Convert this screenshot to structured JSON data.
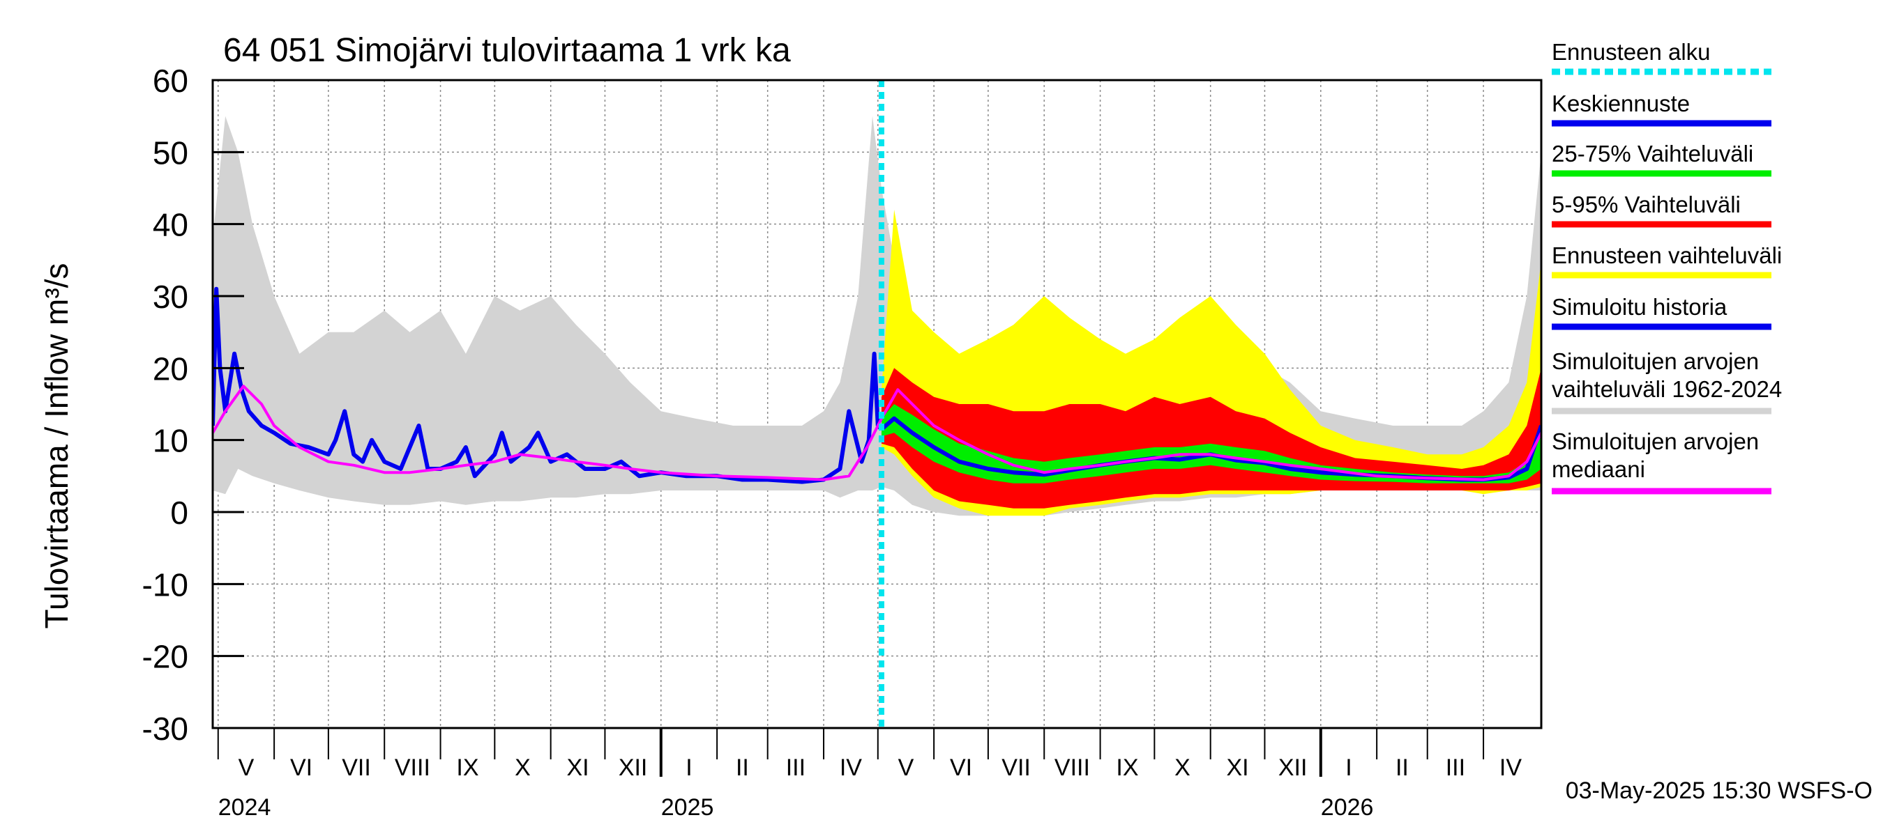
{
  "chart_data": {
    "type": "area",
    "title": "64 051 Simojärvi tulovirtaama 1 vrk ka",
    "ylabel": "Tulovirtaama / Inflow    m³/s",
    "ylim": [
      -30,
      60
    ],
    "yticks": [
      -30,
      -20,
      -10,
      0,
      10,
      20,
      30,
      40,
      50,
      60
    ],
    "ytick_labels": [
      "-30",
      "-20",
      "-10",
      "0",
      "10",
      "20",
      "30",
      "40",
      "50",
      "60"
    ],
    "grid": true,
    "legend_position": "right",
    "months": [
      {
        "label": "V",
        "start": "2024-05-01",
        "end": "2024-06-01"
      },
      {
        "label": "VI",
        "start": "2024-06-01",
        "end": "2024-07-01"
      },
      {
        "label": "VII",
        "start": "2024-07-01",
        "end": "2024-08-01"
      },
      {
        "label": "VIII",
        "start": "2024-08-01",
        "end": "2024-09-01"
      },
      {
        "label": "IX",
        "start": "2024-09-01",
        "end": "2024-10-01"
      },
      {
        "label": "X",
        "start": "2024-10-01",
        "end": "2024-11-01"
      },
      {
        "label": "XI",
        "start": "2024-11-01",
        "end": "2024-12-01"
      },
      {
        "label": "XII",
        "start": "2024-12-01",
        "end": "2025-01-01"
      },
      {
        "label": "I",
        "start": "2025-01-01",
        "end": "2025-02-01"
      },
      {
        "label": "II",
        "start": "2025-02-01",
        "end": "2025-03-01"
      },
      {
        "label": "III",
        "start": "2025-03-01",
        "end": "2025-04-01"
      },
      {
        "label": "IV",
        "start": "2025-04-01",
        "end": "2025-05-01"
      },
      {
        "label": "V",
        "start": "2025-05-01",
        "end": "2025-06-01"
      },
      {
        "label": "VI",
        "start": "2025-06-01",
        "end": "2025-07-01"
      },
      {
        "label": "VII",
        "start": "2025-07-01",
        "end": "2025-08-01"
      },
      {
        "label": "VIII",
        "start": "2025-08-01",
        "end": "2025-09-01"
      },
      {
        "label": "IX",
        "start": "2025-09-01",
        "end": "2025-10-01"
      },
      {
        "label": "X",
        "start": "2025-10-01",
        "end": "2025-11-01"
      },
      {
        "label": "XI",
        "start": "2025-11-01",
        "end": "2025-12-01"
      },
      {
        "label": "XII",
        "start": "2025-12-01",
        "end": "2026-01-01"
      },
      {
        "label": "I",
        "start": "2026-01-01",
        "end": "2026-02-01"
      },
      {
        "label": "II",
        "start": "2026-02-01",
        "end": "2026-03-01"
      },
      {
        "label": "III",
        "start": "2026-03-01",
        "end": "2026-04-01"
      },
      {
        "label": "IV",
        "start": "2026-04-01",
        "end": "2026-05-01"
      }
    ],
    "x_start": "2024-04-28",
    "x_end": "2026-05-03",
    "years": [
      {
        "label": "2024",
        "at": "2024-05-01"
      },
      {
        "label": "2025",
        "at": "2025-01-01"
      },
      {
        "label": "2026",
        "at": "2026-01-01"
      }
    ],
    "forecast_start": "2025-05-03",
    "legend": [
      {
        "label": "Ennusteen alku",
        "color": "#00e5ee",
        "dashed": true
      },
      {
        "label": "Keskiennuste",
        "color": "#0000ee"
      },
      {
        "label": "25-75% Vaihteluväli",
        "color": "#00ee00"
      },
      {
        "label": "5-95% Vaihteluväli",
        "color": "#ff0000"
      },
      {
        "label": "Ennusteen vaihteluväli",
        "color": "#ffff00"
      },
      {
        "label": "Simuloitu historia",
        "color": "#0000ee"
      },
      {
        "label": "Simuloitujen arvojen vaihteluväli 1962-2024",
        "label_lines": [
          "Simuloitujen arvojen",
          "vaihteluväli 1962-2024"
        ],
        "color": "#d3d3d3"
      },
      {
        "label": "Simuloitujen arvojen mediaani",
        "label_lines": [
          "Simuloitujen arvojen",
          "mediaani"
        ],
        "color": "#ff00ff"
      }
    ],
    "series": [
      {
        "name": "Simuloitujen arvojen vaihteluväli 1962-2024",
        "kind": "band",
        "color": "#d3d3d3",
        "x": [
          "2024-04-28",
          "2024-05-05",
          "2024-05-12",
          "2024-05-20",
          "2024-06-01",
          "2024-06-15",
          "2024-07-01",
          "2024-07-15",
          "2024-08-01",
          "2024-08-15",
          "2024-09-01",
          "2024-09-15",
          "2024-10-01",
          "2024-10-15",
          "2024-11-01",
          "2024-11-15",
          "2024-12-01",
          "2024-12-15",
          "2025-01-01",
          "2025-01-20",
          "2025-02-10",
          "2025-03-01",
          "2025-03-20",
          "2025-04-01",
          "2025-04-10",
          "2025-04-20",
          "2025-04-28",
          "2025-05-03",
          "2025-05-10",
          "2025-05-20",
          "2025-06-01",
          "2025-06-15",
          "2025-07-01",
          "2025-07-15",
          "2025-08-01",
          "2025-08-15",
          "2025-09-01",
          "2025-09-15",
          "2025-10-01",
          "2025-10-15",
          "2025-11-01",
          "2025-11-15",
          "2025-12-01",
          "2025-12-15",
          "2026-01-01",
          "2026-01-20",
          "2026-02-10",
          "2026-03-01",
          "2026-03-20",
          "2026-04-01",
          "2026-04-15",
          "2026-04-25",
          "2026-05-03"
        ],
        "lower": [
          3,
          2.5,
          6,
          5,
          4,
          3,
          2,
          1.5,
          1,
          1,
          1.5,
          1,
          1.5,
          1.5,
          2,
          2,
          2.5,
          2.5,
          3,
          3,
          3,
          3,
          3,
          3,
          2,
          3,
          3,
          3.5,
          3,
          1,
          0,
          -0.5,
          -0.5,
          0,
          -0.5,
          0,
          0.5,
          1,
          1.5,
          1.5,
          2,
          2,
          2.5,
          2.5,
          3,
          3,
          3,
          3,
          3,
          3,
          3,
          3,
          3
        ],
        "upper": [
          38,
          55,
          50,
          40,
          30,
          22,
          25,
          25,
          28,
          25,
          28,
          22,
          30,
          28,
          30,
          26,
          22,
          18,
          14,
          13,
          12,
          12,
          12,
          14,
          18,
          30,
          55,
          45,
          35,
          28,
          22,
          20,
          20,
          22,
          20,
          22,
          20,
          22,
          22,
          25,
          25,
          22,
          20,
          18,
          14,
          13,
          12,
          12,
          12,
          14,
          18,
          30,
          50
        ]
      },
      {
        "name": "Ennusteen vaihteluväli",
        "kind": "band",
        "color": "#ffff00",
        "x": [
          "2025-05-03",
          "2025-05-10",
          "2025-05-20",
          "2025-06-01",
          "2025-06-15",
          "2025-07-01",
          "2025-07-15",
          "2025-08-01",
          "2025-08-15",
          "2025-09-01",
          "2025-09-15",
          "2025-10-01",
          "2025-10-15",
          "2025-11-01",
          "2025-11-15",
          "2025-12-01",
          "2025-12-15",
          "2026-01-01",
          "2026-01-20",
          "2026-02-10",
          "2026-03-01",
          "2026-03-20",
          "2026-04-01",
          "2026-04-15",
          "2026-04-25",
          "2026-05-03"
        ],
        "lower": [
          9,
          8,
          5,
          2,
          0.5,
          -0.5,
          -0.5,
          -0.5,
          0.5,
          1,
          1.5,
          2,
          2,
          2.5,
          2.5,
          2.5,
          2.5,
          3,
          3,
          3,
          3,
          3,
          2.5,
          3,
          3,
          3.5
        ],
        "upper": [
          17,
          42,
          28,
          25,
          22,
          24,
          26,
          30,
          27,
          24,
          22,
          24,
          27,
          30,
          26,
          22,
          17,
          12,
          10,
          9,
          8,
          8,
          9,
          12,
          18,
          35
        ]
      },
      {
        "name": "5-95% Vaihteluväli",
        "kind": "band",
        "color": "#ff0000",
        "x": [
          "2025-05-03",
          "2025-05-10",
          "2025-05-20",
          "2025-06-01",
          "2025-06-15",
          "2025-07-01",
          "2025-07-15",
          "2025-08-01",
          "2025-08-15",
          "2025-09-01",
          "2025-09-15",
          "2025-10-01",
          "2025-10-15",
          "2025-11-01",
          "2025-11-15",
          "2025-12-01",
          "2025-12-15",
          "2026-01-01",
          "2026-01-20",
          "2026-02-10",
          "2026-03-01",
          "2026-03-20",
          "2026-04-01",
          "2026-04-15",
          "2026-04-25",
          "2026-05-03"
        ],
        "lower": [
          9.5,
          9,
          6,
          3,
          1.5,
          1,
          0.5,
          0.5,
          1,
          1.5,
          2,
          2.5,
          2.5,
          3,
          3,
          3,
          3,
          3,
          3,
          3,
          3,
          3,
          3,
          3,
          3.5,
          4
        ],
        "upper": [
          16,
          20,
          18,
          16,
          15,
          15,
          14,
          14,
          15,
          15,
          14,
          16,
          15,
          16,
          14,
          13,
          11,
          9,
          7.5,
          7,
          6.5,
          6,
          6.5,
          8,
          12,
          20
        ]
      },
      {
        "name": "25-75% Vaihteluväli",
        "kind": "band",
        "color": "#00ee00",
        "x": [
          "2025-05-03",
          "2025-05-10",
          "2025-05-20",
          "2025-06-01",
          "2025-06-15",
          "2025-07-01",
          "2025-07-15",
          "2025-08-01",
          "2025-08-15",
          "2025-09-01",
          "2025-09-15",
          "2025-10-01",
          "2025-10-15",
          "2025-11-01",
          "2025-11-15",
          "2025-12-01",
          "2025-12-15",
          "2026-01-01",
          "2026-01-20",
          "2026-02-10",
          "2026-03-01",
          "2026-03-20",
          "2026-04-01",
          "2026-04-15",
          "2026-04-25",
          "2026-05-03"
        ],
        "lower": [
          10.5,
          11,
          9,
          7,
          5.5,
          4.5,
          4,
          4,
          4.5,
          5,
          5.5,
          6,
          6,
          6.5,
          6,
          5.5,
          5,
          4.5,
          4.3,
          4.2,
          4,
          4,
          4,
          4,
          4.5,
          6
        ],
        "upper": [
          13,
          15,
          13.5,
          11.5,
          9.5,
          8.5,
          7.5,
          7,
          7.5,
          8,
          8.5,
          9,
          9,
          9.5,
          9,
          8.5,
          7.5,
          6.5,
          6,
          5.5,
          5.2,
          5,
          5,
          5.5,
          7,
          12
        ]
      },
      {
        "name": "Keskiennuste",
        "kind": "line",
        "color": "#0000ee",
        "x": [
          "2025-05-03",
          "2025-05-10",
          "2025-05-20",
          "2025-06-01",
          "2025-06-15",
          "2025-07-01",
          "2025-07-15",
          "2025-08-01",
          "2025-08-15",
          "2025-09-01",
          "2025-09-15",
          "2025-10-01",
          "2025-10-15",
          "2025-11-01",
          "2025-11-15",
          "2025-12-01",
          "2025-12-15",
          "2026-01-01",
          "2026-01-20",
          "2026-02-10",
          "2026-03-01",
          "2026-03-20",
          "2026-04-01",
          "2026-04-15",
          "2026-04-25",
          "2026-05-03"
        ],
        "y": [
          11.5,
          13,
          11,
          9,
          7,
          6,
          5.5,
          5.2,
          5.8,
          6.5,
          7,
          7.5,
          7.3,
          8,
          7.2,
          6.8,
          6,
          5.5,
          5.2,
          5,
          4.7,
          4.5,
          4.5,
          4.8,
          6,
          12
        ]
      },
      {
        "name": "Simuloitu historia",
        "kind": "line",
        "color": "#0000ee",
        "x": [
          "2024-04-28",
          "2024-04-30",
          "2024-05-02",
          "2024-05-05",
          "2024-05-10",
          "2024-05-14",
          "2024-05-18",
          "2024-05-25",
          "2024-06-01",
          "2024-06-10",
          "2024-06-20",
          "2024-07-01",
          "2024-07-05",
          "2024-07-10",
          "2024-07-15",
          "2024-07-20",
          "2024-07-25",
          "2024-08-01",
          "2024-08-10",
          "2024-08-20",
          "2024-08-25",
          "2024-09-01",
          "2024-09-10",
          "2024-09-15",
          "2024-09-20",
          "2024-10-01",
          "2024-10-05",
          "2024-10-10",
          "2024-10-20",
          "2024-10-25",
          "2024-11-01",
          "2024-11-10",
          "2024-11-20",
          "2024-12-01",
          "2024-12-10",
          "2024-12-20",
          "2025-01-01",
          "2025-01-15",
          "2025-02-01",
          "2025-02-15",
          "2025-03-01",
          "2025-03-20",
          "2025-04-01",
          "2025-04-10",
          "2025-04-15",
          "2025-04-22",
          "2025-04-26",
          "2025-04-29",
          "2025-05-01",
          "2025-05-03"
        ],
        "y": [
          12,
          31,
          20,
          14,
          22,
          17,
          14,
          12,
          11,
          9.5,
          9,
          8,
          10,
          14,
          8,
          7,
          10,
          7,
          6,
          12,
          6,
          6,
          7,
          9,
          5,
          8,
          11,
          7,
          9,
          11,
          7,
          8,
          6,
          6,
          7,
          5,
          5.5,
          5,
          5,
          4.5,
          4.5,
          4.2,
          4.5,
          6,
          14,
          7,
          10,
          22,
          12,
          11.5
        ]
      },
      {
        "name": "Simuloitujen arvojen mediaani",
        "kind": "line",
        "color": "#ff00ff",
        "x": [
          "2024-04-28",
          "2024-05-05",
          "2024-05-15",
          "2024-05-25",
          "2024-06-01",
          "2024-06-15",
          "2024-07-01",
          "2024-07-15",
          "2024-08-01",
          "2024-08-15",
          "2024-09-01",
          "2024-09-15",
          "2024-10-01",
          "2024-10-15",
          "2024-11-01",
          "2024-11-15",
          "2024-12-01",
          "2024-12-15",
          "2025-01-01",
          "2025-02-01",
          "2025-03-01",
          "2025-04-01",
          "2025-04-15",
          "2025-04-25",
          "2025-05-03",
          "2025-05-12",
          "2025-05-20",
          "2025-06-01",
          "2025-06-15",
          "2025-07-01",
          "2025-07-15",
          "2025-08-01",
          "2025-08-15",
          "2025-09-01",
          "2025-09-15",
          "2025-10-01",
          "2025-10-15",
          "2025-11-01",
          "2025-11-15",
          "2025-12-01",
          "2025-12-15",
          "2026-01-01",
          "2026-02-01",
          "2026-03-01",
          "2026-04-01",
          "2026-04-15",
          "2026-04-25",
          "2026-05-03"
        ],
        "y": [
          11,
          14,
          17.5,
          15,
          12,
          9,
          7,
          6.5,
          5.5,
          5.5,
          6,
          6.5,
          7,
          8,
          7.5,
          7,
          6.5,
          6,
          5.5,
          5,
          4.8,
          4.5,
          5,
          9,
          13,
          17,
          15,
          12,
          10,
          8,
          6.5,
          5.5,
          6,
          6.5,
          7,
          7.5,
          8,
          8,
          7.5,
          7,
          6.5,
          6,
          5,
          4.7,
          4.5,
          5,
          7,
          11
        ]
      }
    ]
  },
  "footer": {
    "timestamp": "03-May-2025 15:30 WSFS-O"
  }
}
